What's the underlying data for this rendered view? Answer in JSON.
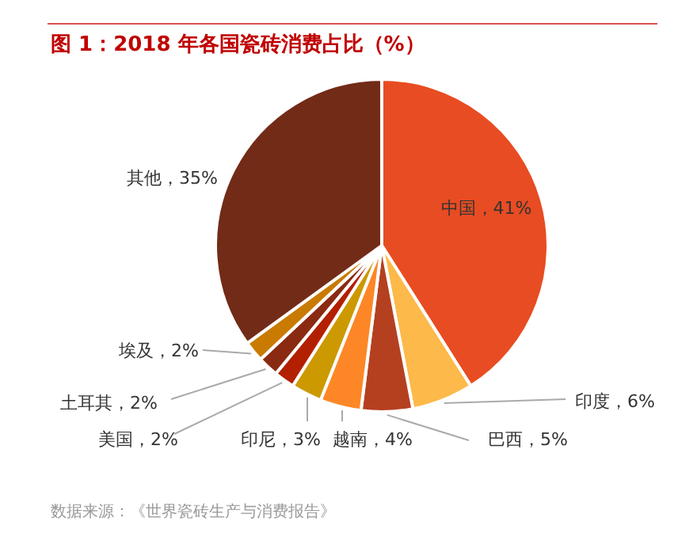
{
  "chart_data": {
    "type": "pie",
    "title": "图 1：2018 年各国瓷砖消费占比（%）",
    "categories": [
      "中国",
      "印度",
      "巴西",
      "越南",
      "印尼",
      "美国",
      "土耳其",
      "埃及",
      "其他"
    ],
    "values": [
      41,
      6,
      5,
      4,
      3,
      2,
      2,
      2,
      35
    ],
    "value_labels": [
      "41%",
      "6%",
      "5%",
      "4%",
      "3%",
      "2%",
      "2%",
      "2%",
      "35%"
    ],
    "colors": [
      "#e84c22",
      "#fdb94a",
      "#b5401f",
      "#fd8726",
      "#cc9900",
      "#b32000",
      "#8a2a12",
      "#c97a00",
      "#722b17"
    ],
    "annotations": [
      "数据来源：《世界瓷砖生产与消费报告》"
    ]
  }
}
